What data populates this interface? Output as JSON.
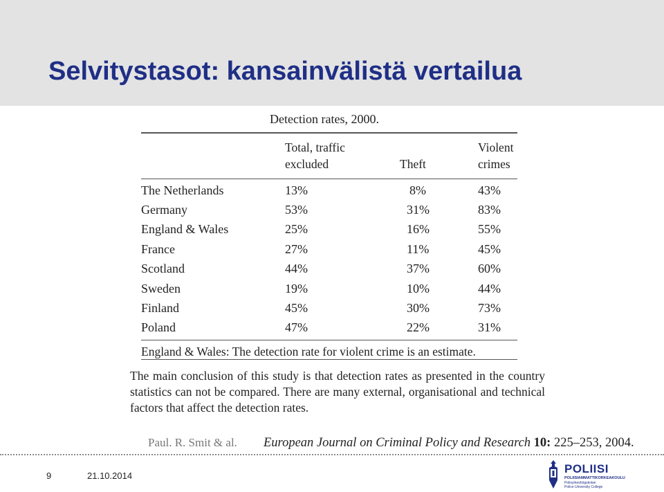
{
  "slide": {
    "title": "Selvitystasot: kansainvälistä vertailua",
    "number": "9",
    "date": "21.10.2014"
  },
  "table": {
    "caption": "Detection rates, 2000.",
    "headers": {
      "total_line1": "Total, traffic",
      "total_line2": "excluded",
      "theft": "Theft",
      "violent_line1": "Violent",
      "violent_line2": "crimes"
    },
    "rows": [
      {
        "country": "The Netherlands",
        "total": "13%",
        "theft": "8%",
        "violent": "43%"
      },
      {
        "country": "Germany",
        "total": "53%",
        "theft": "31%",
        "violent": "83%"
      },
      {
        "country": "England & Wales",
        "total": "25%",
        "theft": "16%",
        "violent": "55%"
      },
      {
        "country": "France",
        "total": "27%",
        "theft": "11%",
        "violent": "45%"
      },
      {
        "country": "Scotland",
        "total": "44%",
        "theft": "37%",
        "violent": "60%"
      },
      {
        "country": "Sweden",
        "total": "19%",
        "theft": "10%",
        "violent": "44%"
      },
      {
        "country": "Finland",
        "total": "45%",
        "theft": "30%",
        "violent": "73%"
      },
      {
        "country": "Poland",
        "total": "47%",
        "theft": "22%",
        "violent": "31%"
      }
    ],
    "footnote": "England & Wales: The detection rate for violent crime is an estimate."
  },
  "conclusion": "The main conclusion of this study is that detection rates as presented in the country statistics can not be compared. There are many external, organisational and technical factors that affect the detection rates.",
  "citation": {
    "authors": "Paul. R. Smit & al.",
    "journal": "European Journal on Criminal Policy and Research",
    "volume": "10:",
    "pages": "225–253, 2004."
  },
  "logo": {
    "name": "POLIISI",
    "line1": "POLIISIAMMATTIKORKEAKOULU",
    "line2": "Polisyrkeshögskolan",
    "line3": "Police University College"
  },
  "colors": {
    "title": "#1f2f86",
    "band": "#e3e3e3",
    "text": "#222222"
  }
}
